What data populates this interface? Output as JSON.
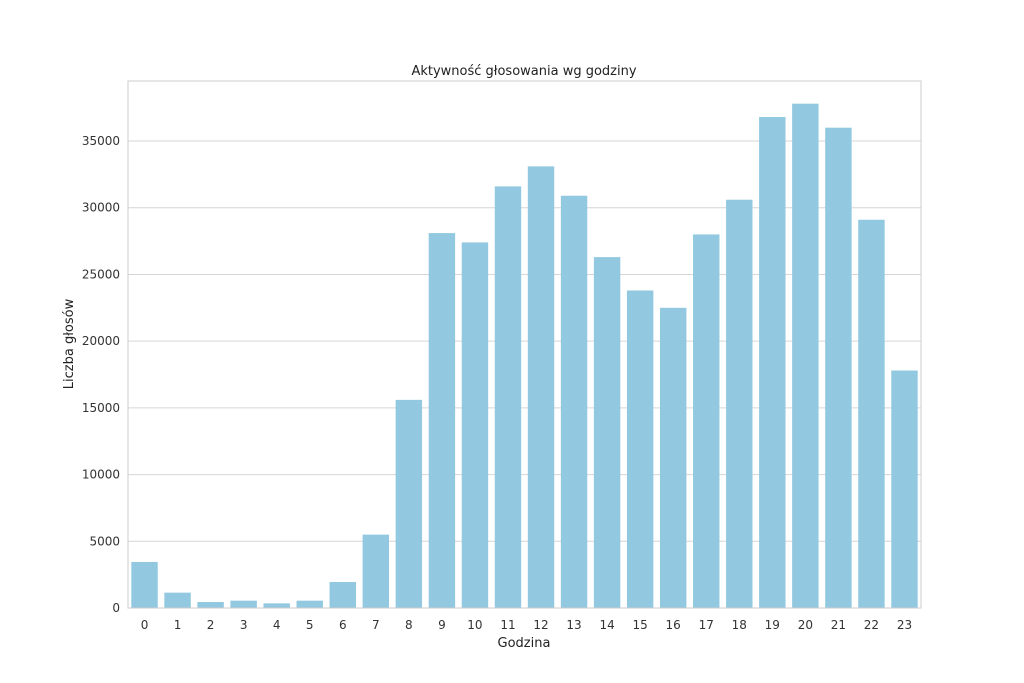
{
  "chart_data": {
    "type": "bar",
    "title": "Aktywność głosowania wg godziny",
    "xlabel": "Godzina",
    "ylabel": "Liczba głosów",
    "categories": [
      "0",
      "1",
      "2",
      "3",
      "4",
      "5",
      "6",
      "7",
      "8",
      "9",
      "10",
      "11",
      "12",
      "13",
      "14",
      "15",
      "16",
      "17",
      "18",
      "19",
      "20",
      "21",
      "22",
      "23"
    ],
    "values": [
      3450,
      1150,
      450,
      550,
      350,
      550,
      1950,
      5500,
      15600,
      28100,
      27400,
      31600,
      33100,
      30900,
      26300,
      23800,
      22500,
      28000,
      30600,
      36800,
      37800,
      36000,
      29100,
      17800
    ],
    "ylim": [
      0,
      39500
    ],
    "yticks": [
      "0",
      "5000",
      "10000",
      "15000",
      "20000",
      "25000",
      "30000",
      "35000"
    ],
    "bar_color": "#92c9e0",
    "grid": "horizontal",
    "legend": "none"
  }
}
